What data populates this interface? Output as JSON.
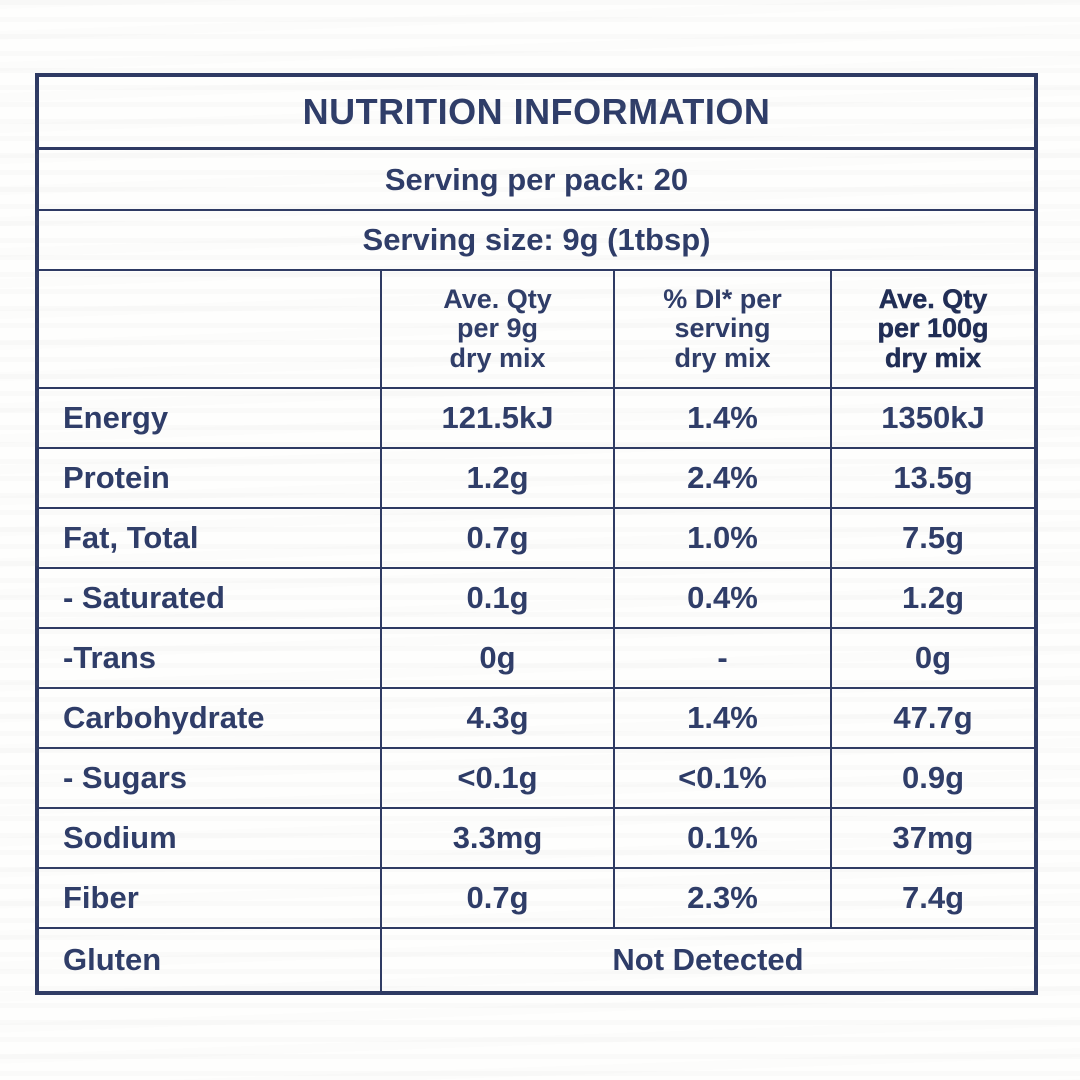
{
  "colors": {
    "ink": "#2e3c68",
    "border": "#2e3a63",
    "strong_ink": "#202d55",
    "background": "#fefefd"
  },
  "header": {
    "title": "NUTRITION INFORMATION",
    "serving_per_pack": "Serving per pack: 20",
    "serving_size": "Serving size: 9g (1tbsp)"
  },
  "columns": {
    "qty_per_serving": {
      "line1": "Ave. Qty",
      "line2": "per 9g",
      "line3": "dry mix"
    },
    "di_per_serving": {
      "line1": "% DI* per",
      "line2": "serving",
      "line3": "dry mix"
    },
    "qty_per_100g": {
      "line1": "Ave. Qty",
      "line2": "per 100g",
      "line3": "dry mix"
    }
  },
  "rows": [
    {
      "label": "Energy",
      "qty_9g": "121.5kJ",
      "di": "1.4%",
      "qty_100g": "1350kJ"
    },
    {
      "label": "Protein",
      "qty_9g": "1.2g",
      "di": "2.4%",
      "qty_100g": "13.5g"
    },
    {
      "label": "Fat, Total",
      "qty_9g": "0.7g",
      "di": "1.0%",
      "qty_100g": "7.5g"
    },
    {
      "label": "- Saturated",
      "qty_9g": "0.1g",
      "di": "0.4%",
      "qty_100g": "1.2g"
    },
    {
      "label": "-Trans",
      "qty_9g": "0g",
      "di": "-",
      "qty_100g": "0g"
    },
    {
      "label": "Carbohydrate",
      "qty_9g": "4.3g",
      "di": "1.4%",
      "qty_100g": "47.7g"
    },
    {
      "label": "- Sugars",
      "qty_9g": "<0.1g",
      "di": "<0.1%",
      "qty_100g": "0.9g"
    },
    {
      "label": "Sodium",
      "qty_9g": "3.3mg",
      "di": "0.1%",
      "qty_100g": "37mg"
    },
    {
      "label": "Fiber",
      "qty_9g": "0.7g",
      "di": "2.3%",
      "qty_100g": "7.4g"
    }
  ],
  "gluten_row": {
    "label": "Gluten",
    "value": "Not Detected"
  }
}
